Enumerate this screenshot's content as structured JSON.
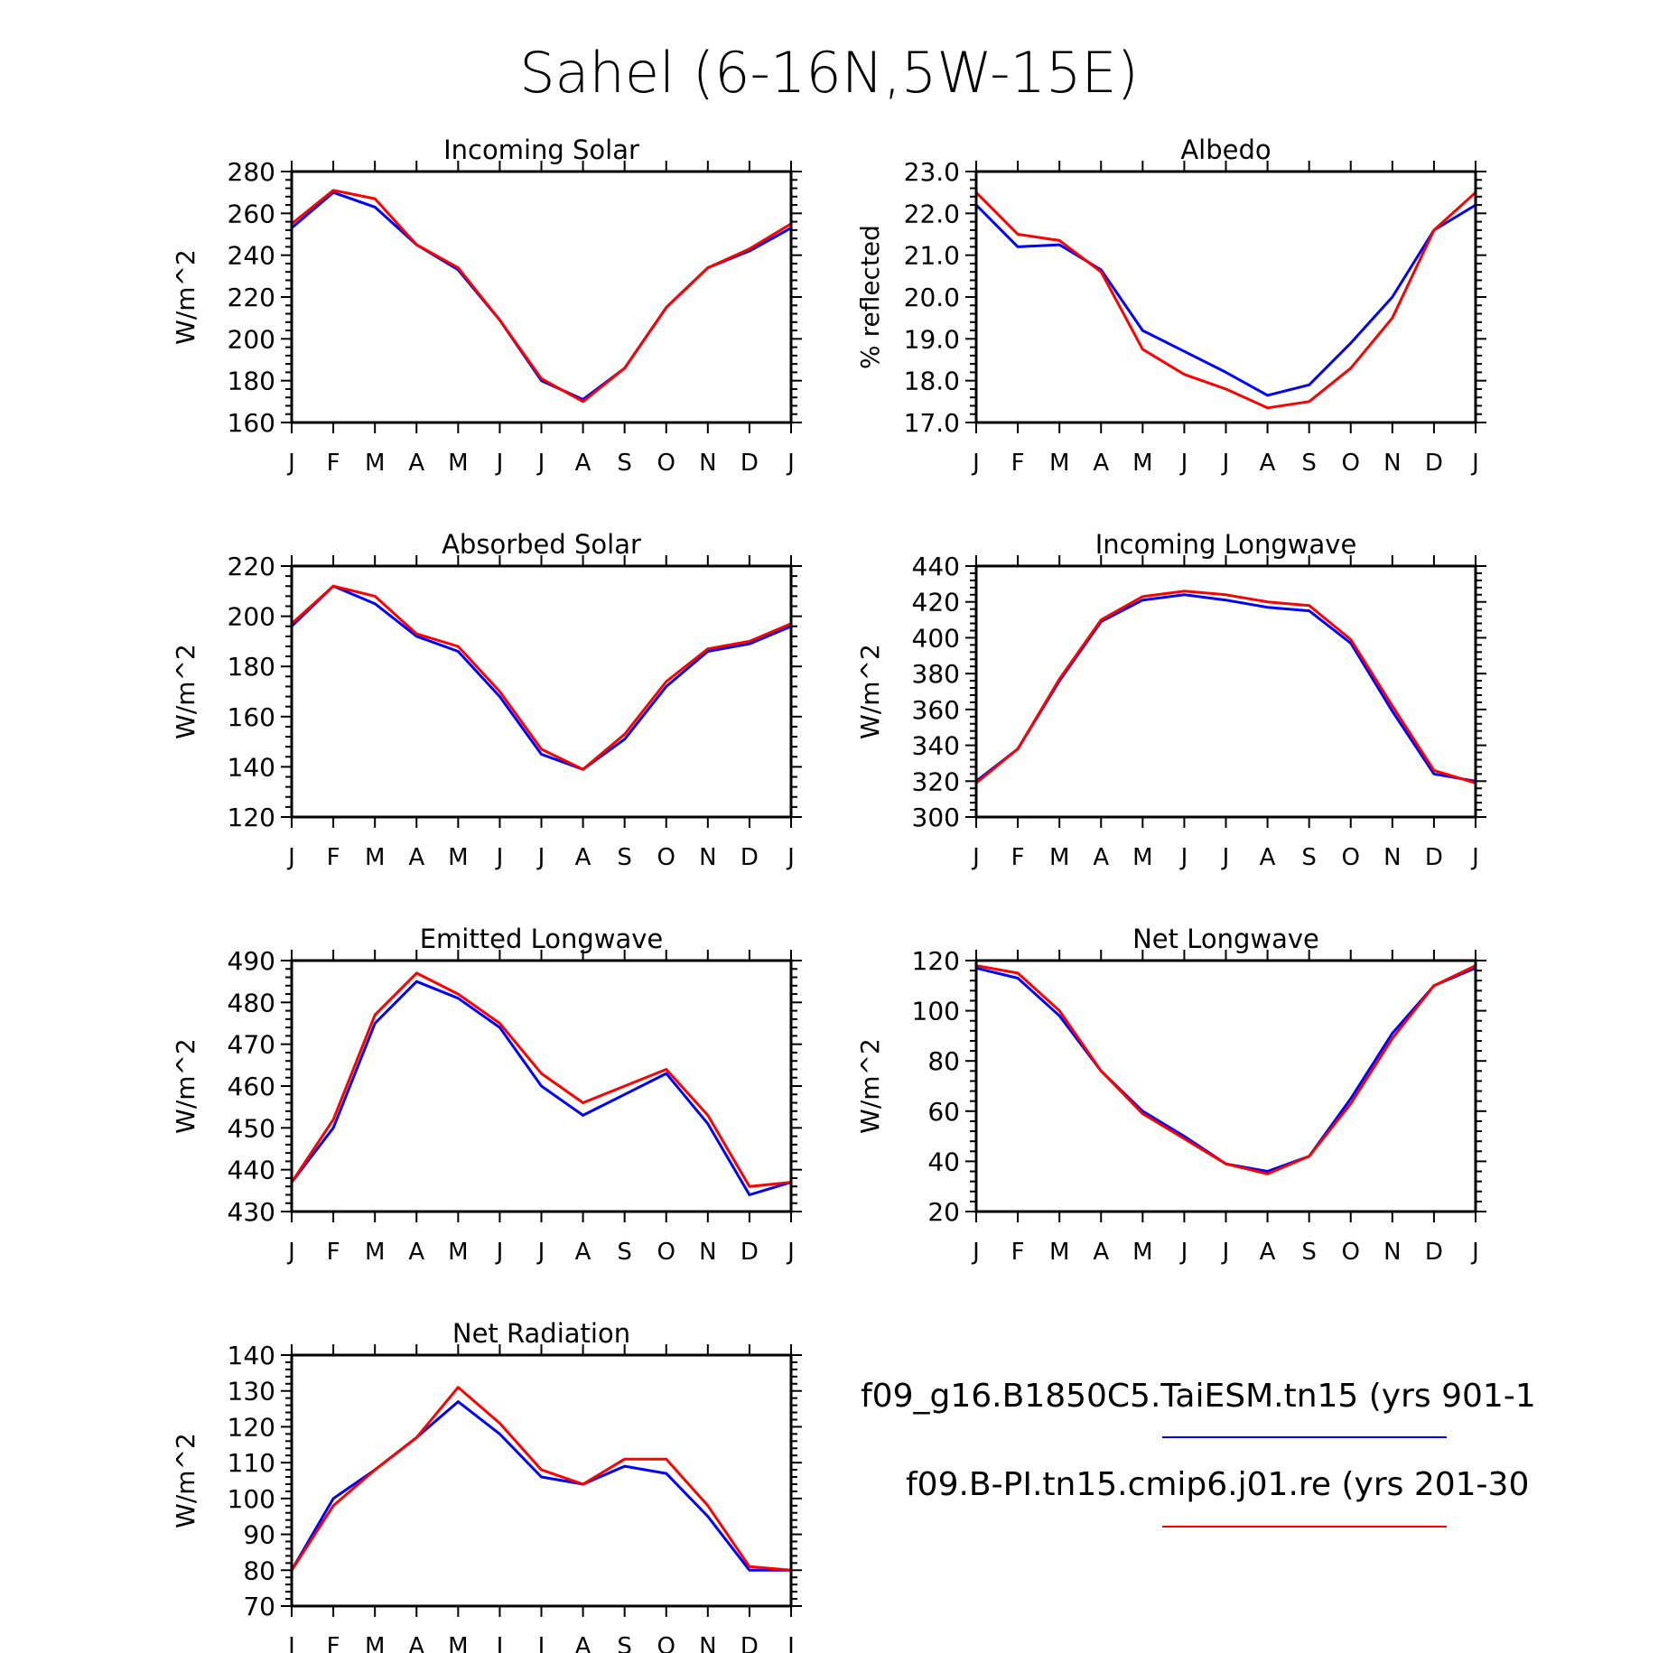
{
  "title": "Sahel (6-16N,5W-15E)",
  "months": [
    "J",
    "F",
    "M",
    "A",
    "M",
    "J",
    "J",
    "A",
    "S",
    "O",
    "N",
    "D",
    "J"
  ],
  "colors": {
    "taiesm": "#0000ff",
    "cmip6": "#ff0000",
    "axis": "#000000"
  },
  "legend": [
    {
      "label": "f09_g16.B1850C5.TaiESM.tn15 (yrs 901-1",
      "color": "#0000ff"
    },
    {
      "label": "f09.B-PI.tn15.cmip6.j01.re (yrs 201-30",
      "color": "#ff0000"
    }
  ],
  "chart_data": [
    {
      "type": "line",
      "title": "Incoming Solar",
      "ylabel": "W/m^2",
      "ylim": [
        160,
        280
      ],
      "yticks": [
        160,
        180,
        200,
        220,
        240,
        260,
        280
      ],
      "yticklabels": [
        "160",
        "180",
        "200",
        "220",
        "240",
        "260",
        "280"
      ],
      "x": [
        "J",
        "F",
        "M",
        "A",
        "M",
        "J",
        "J",
        "A",
        "S",
        "O",
        "N",
        "D",
        "J"
      ],
      "series": [
        {
          "name": "f09_g16.B1850C5.TaiESM.tn15",
          "color": "#0000ff",
          "values": [
            253,
            270,
            263,
            245,
            233,
            209,
            180,
            171,
            186,
            215,
            234,
            242,
            253
          ]
        },
        {
          "name": "f09.B-PI.tn15.cmip6.j01.re",
          "color": "#ff0000",
          "values": [
            255,
            271,
            267,
            245,
            234,
            209,
            181,
            170,
            186,
            215,
            234,
            243,
            255
          ]
        }
      ]
    },
    {
      "type": "line",
      "title": "Albedo",
      "ylabel": "% reflected",
      "ylim": [
        17.0,
        23.0
      ],
      "yticks": [
        17,
        18,
        19,
        20,
        21,
        22,
        23
      ],
      "yticklabels": [
        "17.0",
        "18.0",
        "19.0",
        "20.0",
        "21.0",
        "22.0",
        "23.0"
      ],
      "x": [
        "J",
        "F",
        "M",
        "A",
        "M",
        "J",
        "J",
        "A",
        "S",
        "O",
        "N",
        "D",
        "J"
      ],
      "series": [
        {
          "name": "f09_g16.B1850C5.TaiESM.tn15",
          "color": "#0000ff",
          "values": [
            22.2,
            21.2,
            21.25,
            20.65,
            19.2,
            18.7,
            18.2,
            17.65,
            17.9,
            18.9,
            20.0,
            21.6,
            22.2
          ]
        },
        {
          "name": "f09.B-PI.tn15.cmip6.j01.re",
          "color": "#ff0000",
          "values": [
            22.5,
            21.5,
            21.35,
            20.6,
            18.75,
            18.15,
            17.8,
            17.35,
            17.5,
            18.3,
            19.5,
            21.6,
            22.5
          ]
        }
      ]
    },
    {
      "type": "line",
      "title": "Absorbed Solar",
      "ylabel": "W/m^2",
      "ylim": [
        120,
        220
      ],
      "yticks": [
        120,
        140,
        160,
        180,
        200,
        220
      ],
      "yticklabels": [
        "120",
        "140",
        "160",
        "180",
        "200",
        "220"
      ],
      "x": [
        "J",
        "F",
        "M",
        "A",
        "M",
        "J",
        "J",
        "A",
        "S",
        "O",
        "N",
        "D",
        "J"
      ],
      "series": [
        {
          "name": "f09_g16.B1850C5.TaiESM.tn15",
          "color": "#0000ff",
          "values": [
            196,
            212,
            205,
            192,
            186,
            168,
            145,
            139,
            151,
            172,
            186,
            189,
            196
          ]
        },
        {
          "name": "f09.B-PI.tn15.cmip6.j01.re",
          "color": "#ff0000",
          "values": [
            197,
            212,
            208,
            193,
            188,
            170,
            147,
            139,
            153,
            174,
            187,
            190,
            197
          ]
        }
      ]
    },
    {
      "type": "line",
      "title": "Incoming Longwave",
      "ylabel": "W/m^2",
      "ylim": [
        300,
        440
      ],
      "yticks": [
        300,
        320,
        340,
        360,
        380,
        400,
        420,
        440
      ],
      "yticklabels": [
        "300",
        "320",
        "340",
        "360",
        "380",
        "400",
        "420",
        "440"
      ],
      "x": [
        "J",
        "F",
        "M",
        "A",
        "M",
        "J",
        "J",
        "A",
        "S",
        "O",
        "N",
        "D",
        "J"
      ],
      "series": [
        {
          "name": "f09_g16.B1850C5.TaiESM.tn15",
          "color": "#0000ff",
          "values": [
            320,
            338,
            376,
            409,
            421,
            424,
            421,
            417,
            415,
            397,
            359,
            324,
            320
          ]
        },
        {
          "name": "f09.B-PI.tn15.cmip6.j01.re",
          "color": "#ff0000",
          "values": [
            319,
            338,
            377,
            410,
            423,
            426,
            424,
            420,
            418,
            399,
            362,
            326,
            319
          ]
        }
      ]
    },
    {
      "type": "line",
      "title": "Emitted Longwave",
      "ylabel": "W/m^2",
      "ylim": [
        430,
        490
      ],
      "yticks": [
        430,
        440,
        450,
        460,
        470,
        480,
        490
      ],
      "yticklabels": [
        "430",
        "440",
        "450",
        "460",
        "470",
        "480",
        "490"
      ],
      "x": [
        "J",
        "F",
        "M",
        "A",
        "M",
        "J",
        "J",
        "A",
        "S",
        "O",
        "N",
        "D",
        "J"
      ],
      "series": [
        {
          "name": "f09_g16.B1850C5.TaiESM.tn15",
          "color": "#0000ff",
          "values": [
            437,
            450,
            475,
            485,
            481,
            474,
            460,
            453,
            458,
            463,
            451,
            434,
            437
          ]
        },
        {
          "name": "f09.B-PI.tn15.cmip6.j01.re",
          "color": "#ff0000",
          "values": [
            437,
            452,
            477,
            487,
            482,
            475,
            463,
            456,
            460,
            464,
            453,
            436,
            437
          ]
        }
      ]
    },
    {
      "type": "line",
      "title": "Net Longwave",
      "ylabel": "W/m^2",
      "ylim": [
        20,
        120
      ],
      "yticks": [
        20,
        40,
        60,
        80,
        100,
        120
      ],
      "yticklabels": [
        "20",
        "40",
        "60",
        "80",
        "100",
        "120"
      ],
      "x": [
        "J",
        "F",
        "M",
        "A",
        "M",
        "J",
        "J",
        "A",
        "S",
        "O",
        "N",
        "D",
        "J"
      ],
      "series": [
        {
          "name": "f09_g16.B1850C5.TaiESM.tn15",
          "color": "#0000ff",
          "values": [
            117,
            113,
            98,
            76,
            60,
            50,
            39,
            36,
            42,
            65,
            91,
            110,
            117
          ]
        },
        {
          "name": "f09.B-PI.tn15.cmip6.j01.re",
          "color": "#ff0000",
          "values": [
            118,
            115,
            100,
            76,
            59,
            49,
            39,
            35,
            42,
            63,
            89,
            110,
            118
          ]
        }
      ]
    },
    {
      "type": "line",
      "title": "Net Radiation",
      "ylabel": "W/m^2",
      "ylim": [
        70,
        140
      ],
      "yticks": [
        70,
        80,
        90,
        100,
        110,
        120,
        130,
        140
      ],
      "yticklabels": [
        "70",
        "80",
        "90",
        "100",
        "110",
        "120",
        "130",
        "140"
      ],
      "x": [
        "J",
        "F",
        "M",
        "A",
        "M",
        "J",
        "J",
        "A",
        "S",
        "O",
        "N",
        "D",
        "J"
      ],
      "series": [
        {
          "name": "f09_g16.B1850C5.TaiESM.tn15",
          "color": "#0000ff",
          "values": [
            80,
            100,
            108,
            117,
            127,
            118,
            106,
            104,
            109,
            107,
            95,
            80,
            80
          ]
        },
        {
          "name": "f09.B-PI.tn15.cmip6.j01.re",
          "color": "#ff0000",
          "values": [
            80,
            98,
            108,
            117,
            131,
            121,
            108,
            104,
            111,
            111,
            98,
            81,
            80
          ]
        }
      ]
    }
  ]
}
